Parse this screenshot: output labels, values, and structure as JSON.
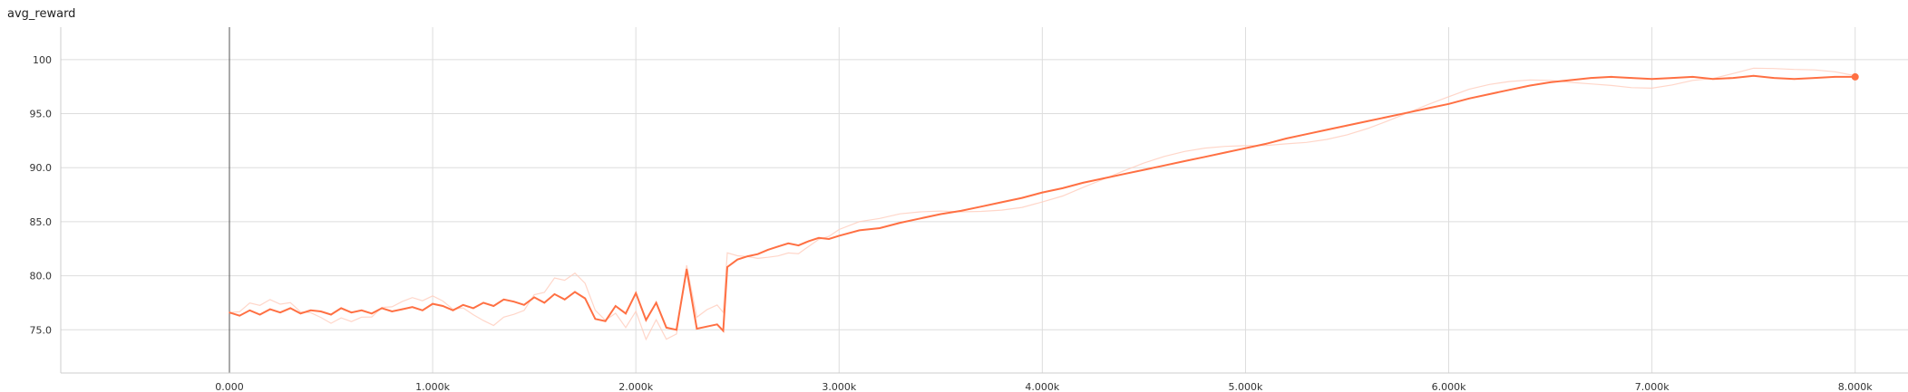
{
  "chart_data": {
    "type": "line",
    "title": "avg_reward",
    "xlabel": "",
    "ylabel": "",
    "xlim": [
      -830,
      8260
    ],
    "ylim": [
      71,
      103
    ],
    "x_ticks": [
      0,
      1000,
      2000,
      3000,
      4000,
      5000,
      6000,
      7000,
      8000
    ],
    "x_tick_labels": [
      "0.000",
      "1.000k",
      "2.000k",
      "3.000k",
      "4.000k",
      "5.000k",
      "6.000k",
      "7.000k",
      "8.000k"
    ],
    "y_ticks": [
      75,
      80,
      85,
      90,
      95,
      100
    ],
    "y_tick_labels": [
      "75.0",
      "80.0",
      "85.0",
      "90.0",
      "95.0",
      "100"
    ],
    "grid": true,
    "series": [
      {
        "color": "#ff7043",
        "raw_color": "#ffccbc",
        "x": [
          0,
          50,
          100,
          150,
          200,
          250,
          300,
          350,
          400,
          450,
          500,
          550,
          600,
          650,
          700,
          750,
          800,
          850,
          900,
          950,
          1000,
          1050,
          1100,
          1150,
          1200,
          1250,
          1300,
          1350,
          1400,
          1450,
          1500,
          1550,
          1600,
          1650,
          1700,
          1750,
          1800,
          1850,
          1900,
          1950,
          2000,
          2050,
          2100,
          2150,
          2200,
          2250,
          2300,
          2350,
          2400,
          2430,
          2450,
          2500,
          2550,
          2600,
          2650,
          2700,
          2750,
          2800,
          2850,
          2900,
          2950,
          3000,
          3100,
          3200,
          3300,
          3400,
          3500,
          3600,
          3700,
          3800,
          3900,
          4000,
          4100,
          4200,
          4300,
          4400,
          4500,
          4600,
          4700,
          4800,
          4900,
          5000,
          5100,
          5200,
          5300,
          5400,
          5500,
          5600,
          5700,
          5800,
          5900,
          6000,
          6100,
          6200,
          6300,
          6400,
          6500,
          6600,
          6700,
          6800,
          6900,
          7000,
          7100,
          7200,
          7300,
          7400,
          7500,
          7600,
          7700,
          7800,
          7900,
          8000
        ],
        "values": [
          76.6,
          76.3,
          76.8,
          76.4,
          76.9,
          76.6,
          77.0,
          76.5,
          76.8,
          76.7,
          76.4,
          77.0,
          76.6,
          76.8,
          76.5,
          77.0,
          76.7,
          76.9,
          77.1,
          76.8,
          77.4,
          77.2,
          76.8,
          77.3,
          77.0,
          77.5,
          77.2,
          77.8,
          77.6,
          77.3,
          78.0,
          77.5,
          78.3,
          77.8,
          78.5,
          77.9,
          76.0,
          75.8,
          77.2,
          76.5,
          78.4,
          75.9,
          77.5,
          75.2,
          75.0,
          80.6,
          75.1,
          75.3,
          75.5,
          74.9,
          80.8,
          81.5,
          81.8,
          82.0,
          82.4,
          82.7,
          83.0,
          82.8,
          83.2,
          83.5,
          83.4,
          83.7,
          84.2,
          84.4,
          84.9,
          85.3,
          85.7,
          86.0,
          86.4,
          86.8,
          87.2,
          87.7,
          88.1,
          88.6,
          89.0,
          89.4,
          89.8,
          90.2,
          90.6,
          91.0,
          91.4,
          91.8,
          92.2,
          92.7,
          93.1,
          93.5,
          93.9,
          94.3,
          94.7,
          95.1,
          95.5,
          95.9,
          96.4,
          96.8,
          97.2,
          97.6,
          97.9,
          98.1,
          98.3,
          98.4,
          98.3,
          98.2,
          98.3,
          98.4,
          98.2,
          98.3,
          98.5,
          98.3,
          98.2,
          98.3,
          98.4,
          98.4
        ]
      }
    ]
  }
}
